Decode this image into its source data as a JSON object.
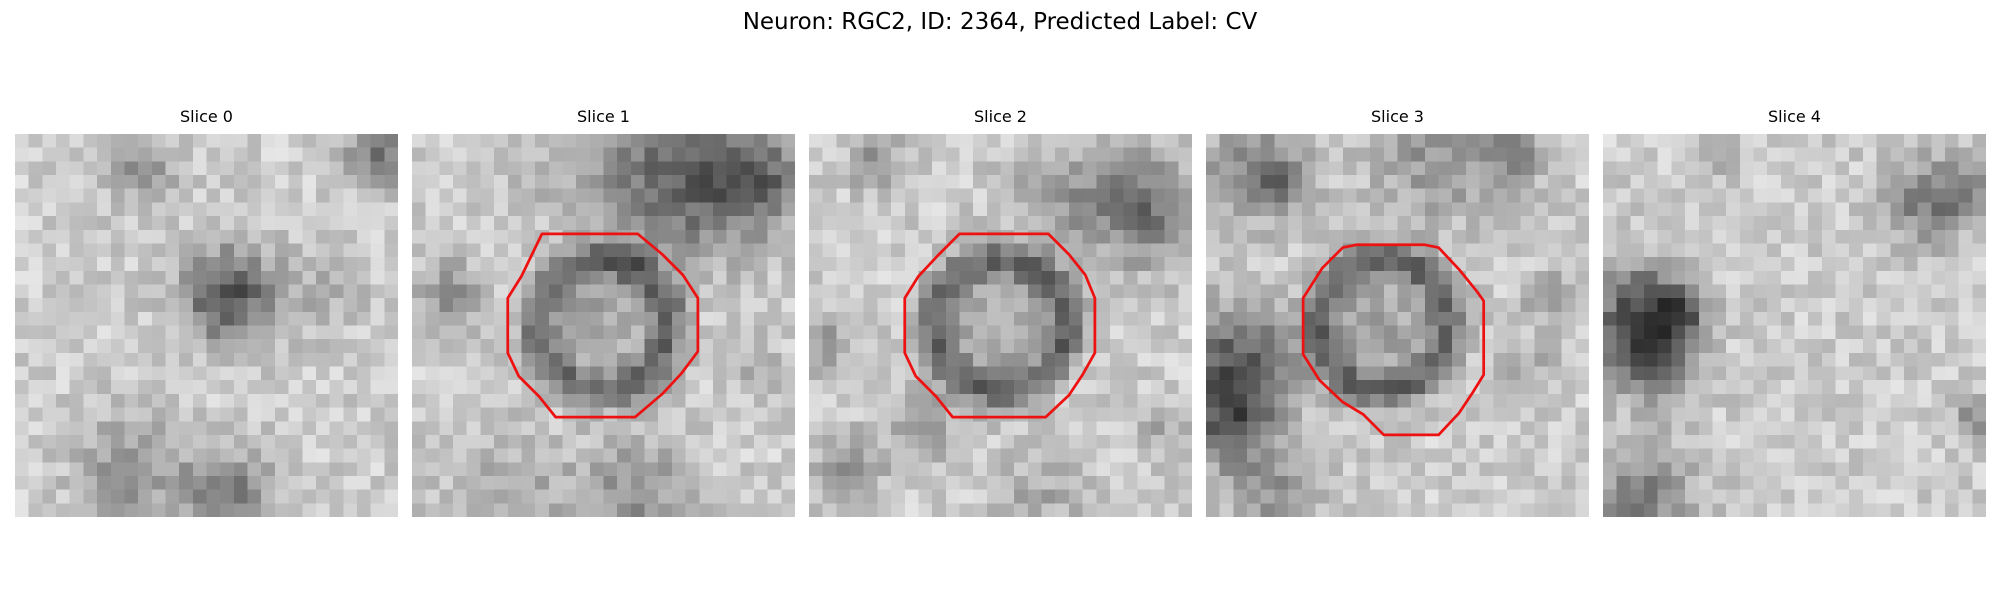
{
  "figure": {
    "title": "Neuron: RGC2, ID: 2364, Predicted Label: CV"
  },
  "colors": {
    "contour": "#ee1111",
    "colormap": "grayscale"
  },
  "panels": [
    {
      "title": "Slice 0",
      "has_contour": false,
      "blobs": [
        [
          0.33,
          0.1,
          0.06,
          55
        ],
        [
          0.95,
          0.06,
          0.06,
          95
        ],
        [
          0.57,
          0.4,
          0.08,
          90
        ],
        [
          0.53,
          0.46,
          0.07,
          55
        ],
        [
          0.3,
          0.88,
          0.1,
          55
        ],
        [
          0.55,
          0.94,
          0.08,
          85
        ],
        [
          0.8,
          0.42,
          0.08,
          30
        ]
      ]
    },
    {
      "title": "Slice 1",
      "has_contour": true,
      "blobs": [
        [
          0.75,
          0.14,
          0.13,
          95
        ],
        [
          0.92,
          0.12,
          0.08,
          75
        ],
        [
          0.52,
          0.06,
          0.15,
          45
        ],
        [
          0.1,
          0.42,
          0.06,
          60
        ],
        [
          0.9,
          0.6,
          0.05,
          30
        ],
        [
          0.25,
          0.94,
          0.12,
          35
        ],
        [
          0.58,
          0.94,
          0.1,
          60
        ]
      ]
    },
    {
      "title": "Slice 2",
      "has_contour": true,
      "blobs": [
        [
          0.18,
          0.08,
          0.05,
          60
        ],
        [
          0.88,
          0.2,
          0.1,
          90
        ],
        [
          0.66,
          0.16,
          0.1,
          45
        ],
        [
          0.05,
          0.55,
          0.06,
          45
        ],
        [
          0.1,
          0.87,
          0.06,
          65
        ],
        [
          0.3,
          0.76,
          0.07,
          40
        ],
        [
          0.6,
          0.95,
          0.08,
          35
        ],
        [
          0.92,
          0.76,
          0.05,
          35
        ]
      ]
    },
    {
      "title": "Slice 3",
      "has_contour": true,
      "blobs": [
        [
          0.12,
          0.1,
          0.09,
          70
        ],
        [
          0.2,
          0.13,
          0.05,
          50
        ],
        [
          0.6,
          0.06,
          0.12,
          55
        ],
        [
          0.8,
          0.05,
          0.06,
          60
        ],
        [
          0.08,
          0.6,
          0.11,
          110
        ],
        [
          0.06,
          0.76,
          0.08,
          90
        ],
        [
          0.9,
          0.43,
          0.05,
          50
        ],
        [
          0.18,
          0.94,
          0.08,
          55
        ],
        [
          0.85,
          0.62,
          0.06,
          30
        ]
      ]
    },
    {
      "title": "Slice 4",
      "has_contour": false,
      "blobs": [
        [
          0.1,
          0.46,
          0.09,
          110
        ],
        [
          0.12,
          0.58,
          0.08,
          100
        ],
        [
          0.2,
          0.47,
          0.05,
          70
        ],
        [
          0.85,
          0.18,
          0.08,
          80
        ],
        [
          0.95,
          0.14,
          0.05,
          50
        ],
        [
          0.1,
          0.95,
          0.1,
          75
        ],
        [
          0.97,
          0.74,
          0.04,
          60
        ],
        [
          0.3,
          0.06,
          0.06,
          25
        ]
      ]
    }
  ]
}
